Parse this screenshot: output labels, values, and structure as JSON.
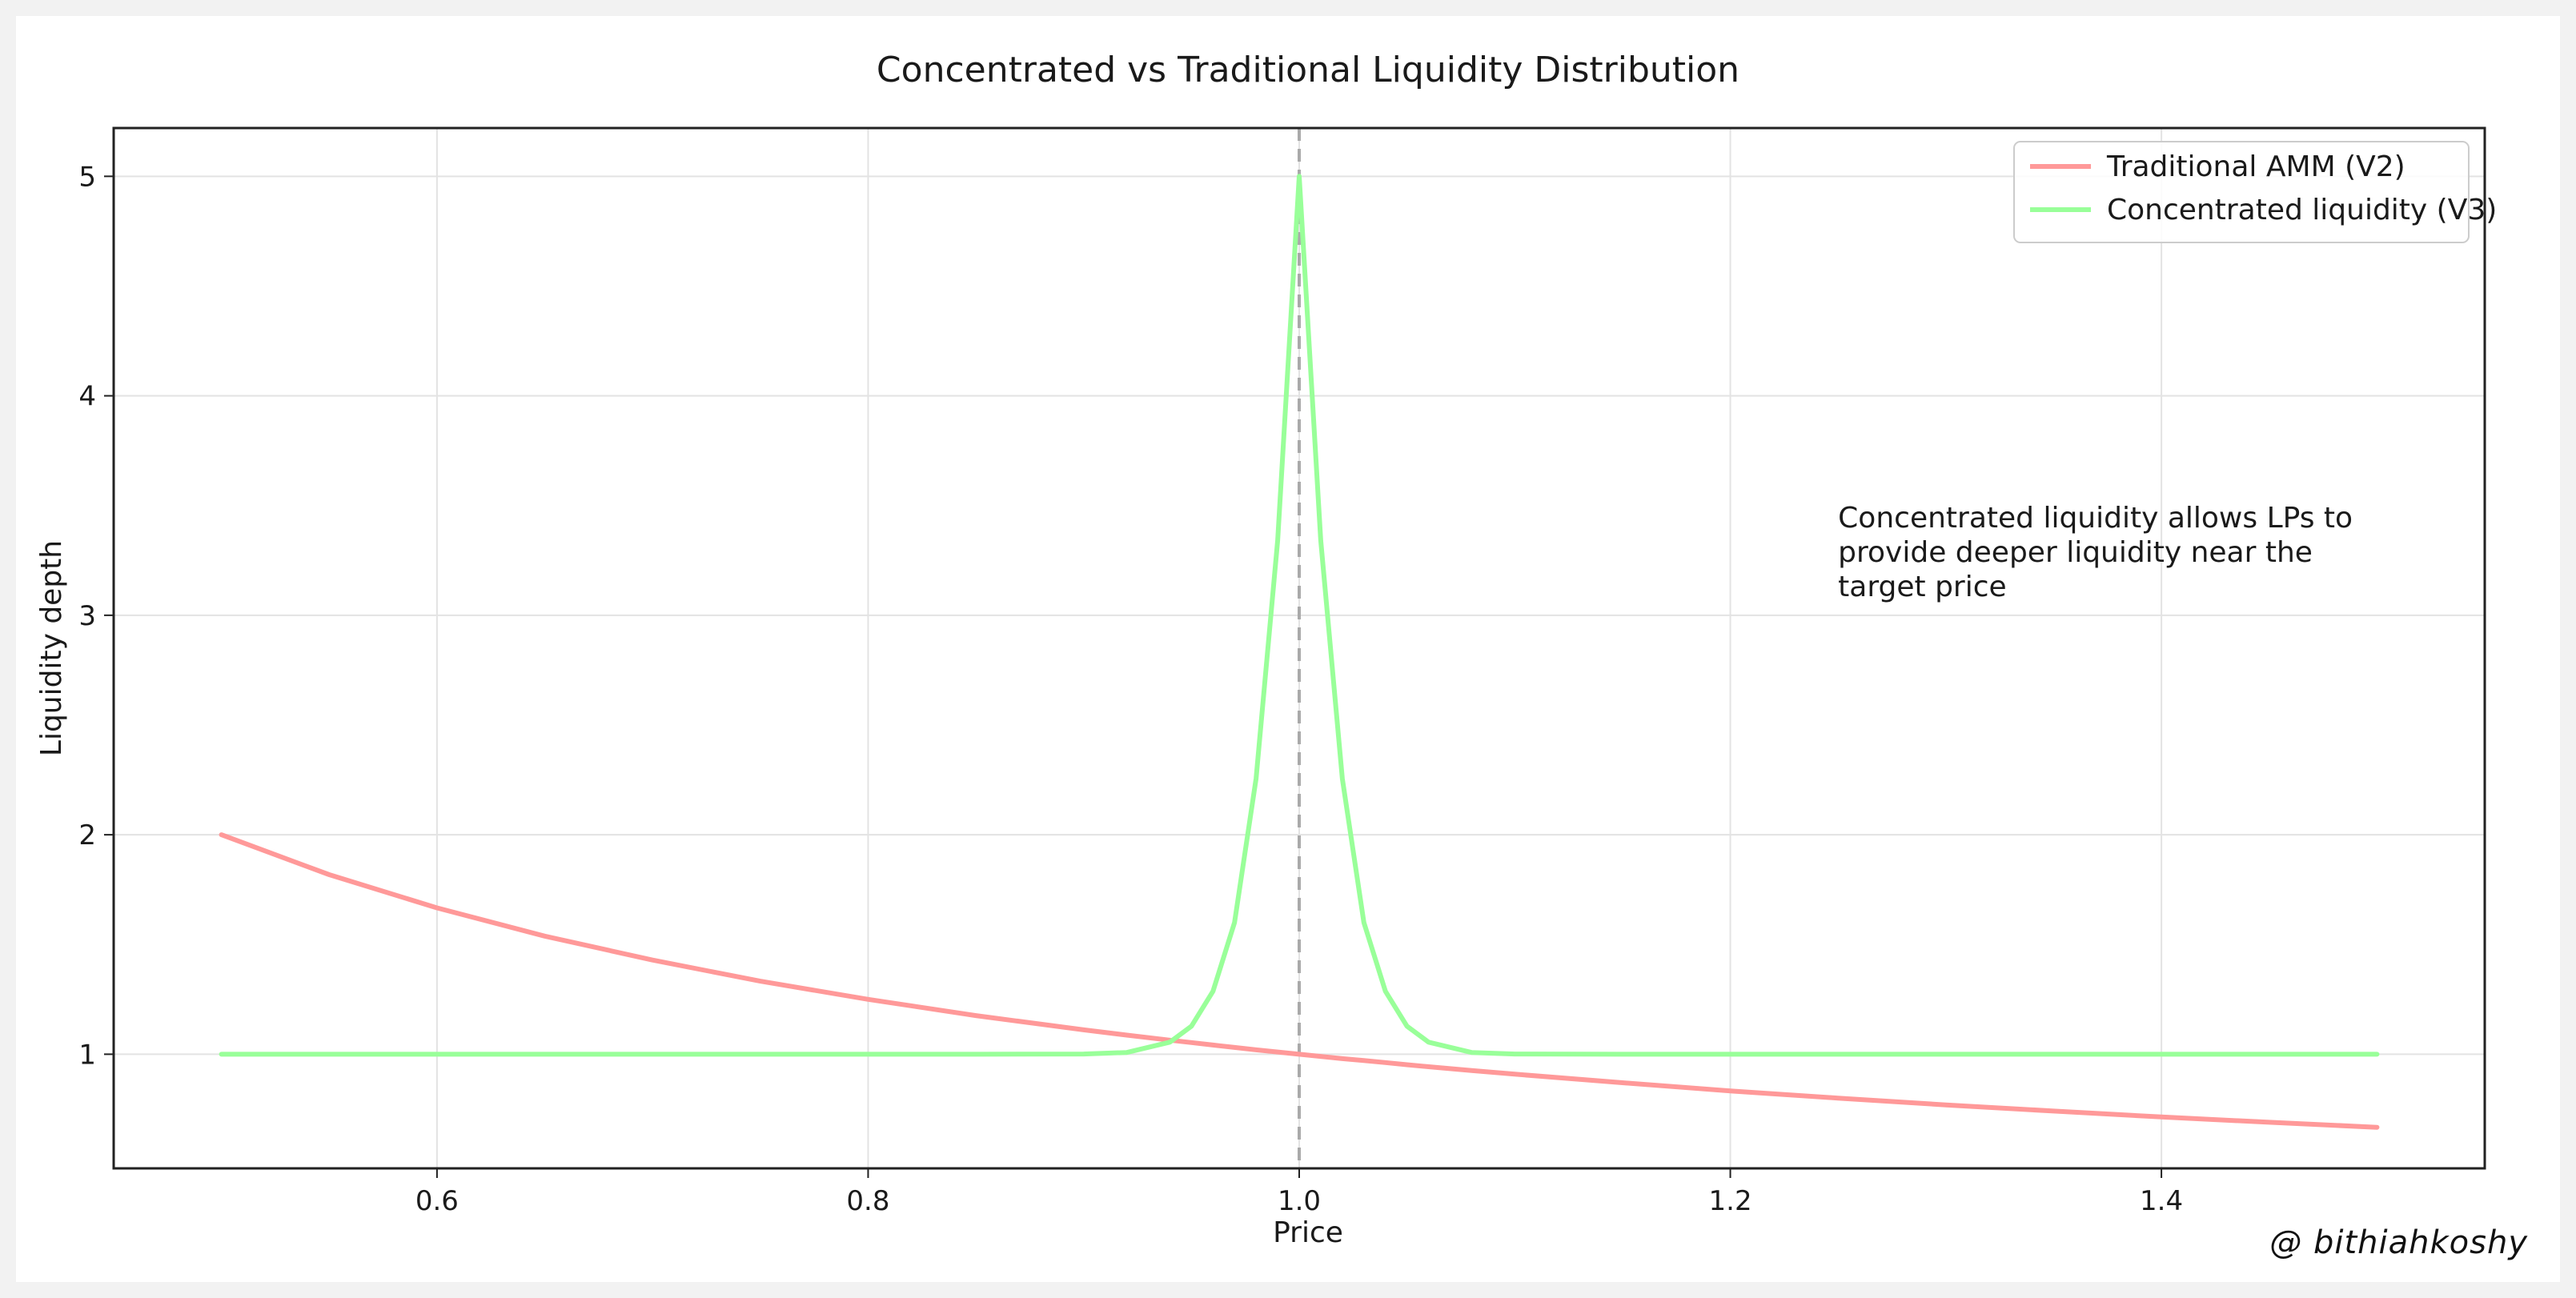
{
  "watermark": "@ bithiahkoshy",
  "chart_data": {
    "type": "line",
    "title": "Concentrated vs Traditional Liquidity Distribution",
    "xlabel": "Price",
    "ylabel": "Liquidity depth",
    "xlim": [
      0.45,
      1.55
    ],
    "ylim": [
      0.48,
      5.22
    ],
    "x_ticks": [
      0.6,
      0.8,
      1.0,
      1.2,
      1.4
    ],
    "x_tick_labels": [
      "0.6",
      "0.8",
      "1.0",
      "1.2",
      "1.4"
    ],
    "y_ticks": [
      1,
      2,
      3,
      4,
      5
    ],
    "y_tick_labels": [
      "1",
      "2",
      "3",
      "4",
      "5"
    ],
    "grid": true,
    "legend_position": "top-right",
    "reference_line": {
      "x": 1.0,
      "style": "dashed",
      "color": "#aaaaaa"
    },
    "annotation": {
      "lines": [
        "Concentrated liquidity allows LPs to",
        "provide deeper liquidity near the",
        "target price"
      ],
      "x": 1.25,
      "y": 3.4
    },
    "x": [
      0.5,
      0.55,
      0.6,
      0.65,
      0.7,
      0.75,
      0.8,
      0.85,
      0.9,
      0.92,
      0.94,
      0.95,
      0.96,
      0.97,
      0.98,
      0.99,
      1.0,
      1.01,
      1.02,
      1.03,
      1.04,
      1.05,
      1.06,
      1.08,
      1.1,
      1.15,
      1.2,
      1.25,
      1.3,
      1.35,
      1.4,
      1.45,
      1.5
    ],
    "series": [
      {
        "name": "Traditional AMM (V2)",
        "color": "#ff9999",
        "values": [
          2.0,
          1.818,
          1.667,
          1.538,
          1.429,
          1.333,
          1.25,
          1.176,
          1.111,
          1.087,
          1.064,
          1.053,
          1.042,
          1.031,
          1.02,
          1.01,
          1.0,
          0.99,
          0.98,
          0.971,
          0.962,
          0.952,
          0.943,
          0.926,
          0.909,
          0.87,
          0.833,
          0.8,
          0.769,
          0.741,
          0.714,
          0.69,
          0.667
        ]
      },
      {
        "name": "Concentrated liquidity (V3)",
        "color": "#99ff99",
        "values": [
          1.0,
          1.0,
          1.0,
          1.0,
          1.0,
          1.0,
          1.0,
          1.0,
          1.001,
          1.008,
          1.055,
          1.128,
          1.287,
          1.6,
          2.255,
          3.341,
          5.0,
          3.341,
          2.255,
          1.6,
          1.287,
          1.128,
          1.055,
          1.008,
          1.001,
          1.0,
          1.0,
          1.0,
          1.0,
          1.0,
          1.0,
          1.0,
          1.0
        ]
      }
    ]
  }
}
